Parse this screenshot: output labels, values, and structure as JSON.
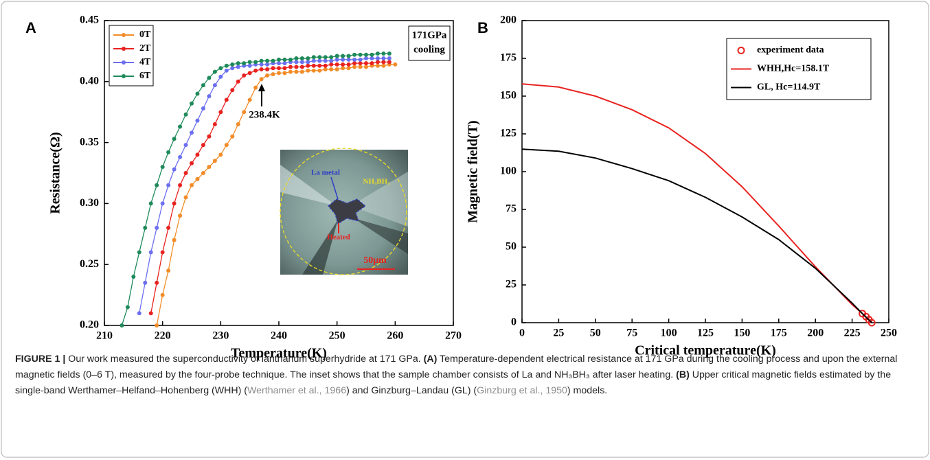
{
  "chart_data": [
    {
      "type": "line",
      "panel_label": "A",
      "xlabel": "Temperature(K)",
      "ylabel": "Resistance(Ω)",
      "xlim": [
        210,
        270
      ],
      "xticks": [
        210,
        220,
        230,
        240,
        250,
        260,
        270
      ],
      "ylim": [
        0.2,
        0.45
      ],
      "yticks": [
        {
          "value": 0.2,
          "label": "0.20"
        },
        0.25,
        {
          "value": 0.3,
          "label": "0.30"
        },
        0.35,
        {
          "value": 0.4,
          "label": "0.40"
        },
        0.45
      ],
      "grid": false,
      "legend": "upper left",
      "annotations": [
        "238.4K"
      ],
      "condition_box": [
        "171GPa",
        "cooling"
      ],
      "inset_labels": [
        "La metal",
        "NH₃BH₃",
        "Heated",
        "50μm"
      ],
      "x": [
        213,
        214,
        215,
        216,
        217,
        218,
        219,
        220,
        221,
        222,
        223,
        224,
        225,
        226,
        227,
        228,
        229,
        230,
        231,
        232,
        233,
        234,
        235,
        236,
        237,
        238,
        239,
        240,
        241,
        242,
        243,
        244,
        245,
        246,
        247,
        248,
        249,
        250,
        251,
        252,
        253,
        254,
        255,
        256,
        257,
        258,
        259,
        260
      ],
      "series": [
        {
          "name": "0T",
          "color": "#f28c28",
          "line": true,
          "marker": "dot",
          "values": [
            null,
            null,
            null,
            null,
            null,
            null,
            0.2,
            0.225,
            0.245,
            0.27,
            0.29,
            0.305,
            0.315,
            0.32,
            0.325,
            0.33,
            0.335,
            0.34,
            0.348,
            0.355,
            0.365,
            0.375,
            0.385,
            0.395,
            0.402,
            0.405,
            0.406,
            0.407,
            0.407,
            0.408,
            0.408,
            0.408,
            0.409,
            0.409,
            0.409,
            0.41,
            0.41,
            0.41,
            0.411,
            0.411,
            0.412,
            0.412,
            0.412,
            0.413,
            0.413,
            0.413,
            0.414,
            0.414
          ]
        },
        {
          "name": "2T",
          "color": "#e8221f",
          "line": true,
          "marker": "dot",
          "values": [
            null,
            null,
            null,
            null,
            null,
            0.21,
            0.235,
            0.26,
            0.28,
            0.3,
            0.315,
            0.325,
            0.333,
            0.34,
            0.348,
            0.355,
            0.365,
            0.375,
            0.385,
            0.393,
            0.4,
            0.405,
            0.407,
            0.409,
            0.41,
            0.41,
            0.411,
            0.411,
            0.411,
            0.412,
            0.412,
            0.412,
            0.413,
            0.413,
            0.413,
            0.413,
            0.414,
            0.414,
            0.414,
            0.414,
            0.415,
            0.415,
            0.415,
            0.415,
            0.416,
            0.416,
            0.416,
            null
          ]
        },
        {
          "name": "4T",
          "color": "#6b6ff0",
          "line": true,
          "marker": "dot",
          "values": [
            null,
            null,
            null,
            0.21,
            0.235,
            0.26,
            0.28,
            0.3,
            0.315,
            0.328,
            0.338,
            0.348,
            0.358,
            0.368,
            0.378,
            0.388,
            0.397,
            0.404,
            0.409,
            0.411,
            0.412,
            0.413,
            0.413,
            0.414,
            0.414,
            0.414,
            0.415,
            0.415,
            0.415,
            0.416,
            0.416,
            0.416,
            0.416,
            0.417,
            0.417,
            0.417,
            0.417,
            0.418,
            0.418,
            0.418,
            0.418,
            0.418,
            0.419,
            0.419,
            0.419,
            0.419,
            0.419,
            null
          ]
        },
        {
          "name": "6T",
          "color": "#1e8a5a",
          "line": true,
          "marker": "dot",
          "values": [
            0.2,
            0.215,
            0.24,
            0.26,
            0.28,
            0.3,
            0.315,
            0.33,
            0.342,
            0.353,
            0.363,
            0.373,
            0.382,
            0.39,
            0.397,
            0.403,
            0.408,
            0.411,
            0.413,
            0.414,
            0.415,
            0.415,
            0.416,
            0.416,
            0.417,
            0.417,
            0.417,
            0.418,
            0.418,
            0.418,
            0.419,
            0.419,
            0.419,
            0.42,
            0.42,
            0.42,
            0.42,
            0.421,
            0.421,
            0.421,
            0.422,
            0.422,
            0.422,
            0.422,
            0.423,
            0.423,
            0.423,
            null
          ]
        }
      ]
    },
    {
      "type": "line",
      "panel_label": "B",
      "xlabel": "Critical temperature(K)",
      "ylabel": "Magnetic field(T)",
      "xlim": [
        0,
        250
      ],
      "xticks": [
        0,
        25,
        50,
        75,
        100,
        125,
        150,
        175,
        200,
        225,
        250
      ],
      "ylim": [
        0,
        200
      ],
      "yticks": [
        0,
        25,
        50,
        75,
        100,
        125,
        150,
        175,
        200
      ],
      "grid": false,
      "legend": "upper right",
      "series": [
        {
          "name": "experiment data",
          "color": "#e8221f",
          "line": false,
          "marker": "circle-open",
          "x": [
            232.0,
            234.5,
            236.5,
            238.4
          ],
          "values": [
            6,
            4,
            2,
            0
          ]
        },
        {
          "name": "WHH,Hc=158.1T",
          "color": "#e8221f",
          "line": true,
          "marker": "none",
          "x": [
            0,
            25,
            50,
            75,
            100,
            125,
            150,
            175,
            200,
            225,
            232,
            238.4
          ],
          "values": [
            158.1,
            156,
            150,
            141,
            129,
            112,
            90,
            64,
            37,
            12,
            6,
            0
          ]
        },
        {
          "name": "GL,    Hc=114.9T",
          "color": "#000000",
          "line": true,
          "marker": "none",
          "x": [
            0,
            25,
            50,
            75,
            100,
            125,
            150,
            175,
            200,
            225,
            232,
            238.4
          ],
          "values": [
            114.9,
            113.5,
            109,
            102,
            94,
            83,
            70,
            55,
            36,
            13,
            6,
            0
          ]
        }
      ]
    }
  ],
  "caption": {
    "segments": [
      {
        "text": "FIGURE 1 |",
        "style": "bold"
      },
      {
        "text": " Our work measured the superconductivity of lanthanum superhydride at 171 GPa. ",
        "style": "normal"
      },
      {
        "text": "(A)",
        "style": "bold"
      },
      {
        "text": " Temperature-dependent electrical resistance at 171 GPa during the cooling process and upon the external magnetic fields (0–6 T), measured by the four-probe technique. The inset shows that the sample chamber consists of La and NH₃BH₃ after laser heating. ",
        "style": "normal"
      },
      {
        "text": "(B)",
        "style": "bold"
      },
      {
        "text": " Upper critical magnetic fields estimated by the single-band Werthamer–Helfand–Hohenberg (WHH) (",
        "style": "normal"
      },
      {
        "text": "Werthamer et al., 1966",
        "style": "link"
      },
      {
        "text": ") and Ginzburg–Landau (GL) (",
        "style": "normal"
      },
      {
        "text": "Ginzburg et al., 1950",
        "style": "link"
      },
      {
        "text": ") models.",
        "style": "normal"
      }
    ]
  }
}
